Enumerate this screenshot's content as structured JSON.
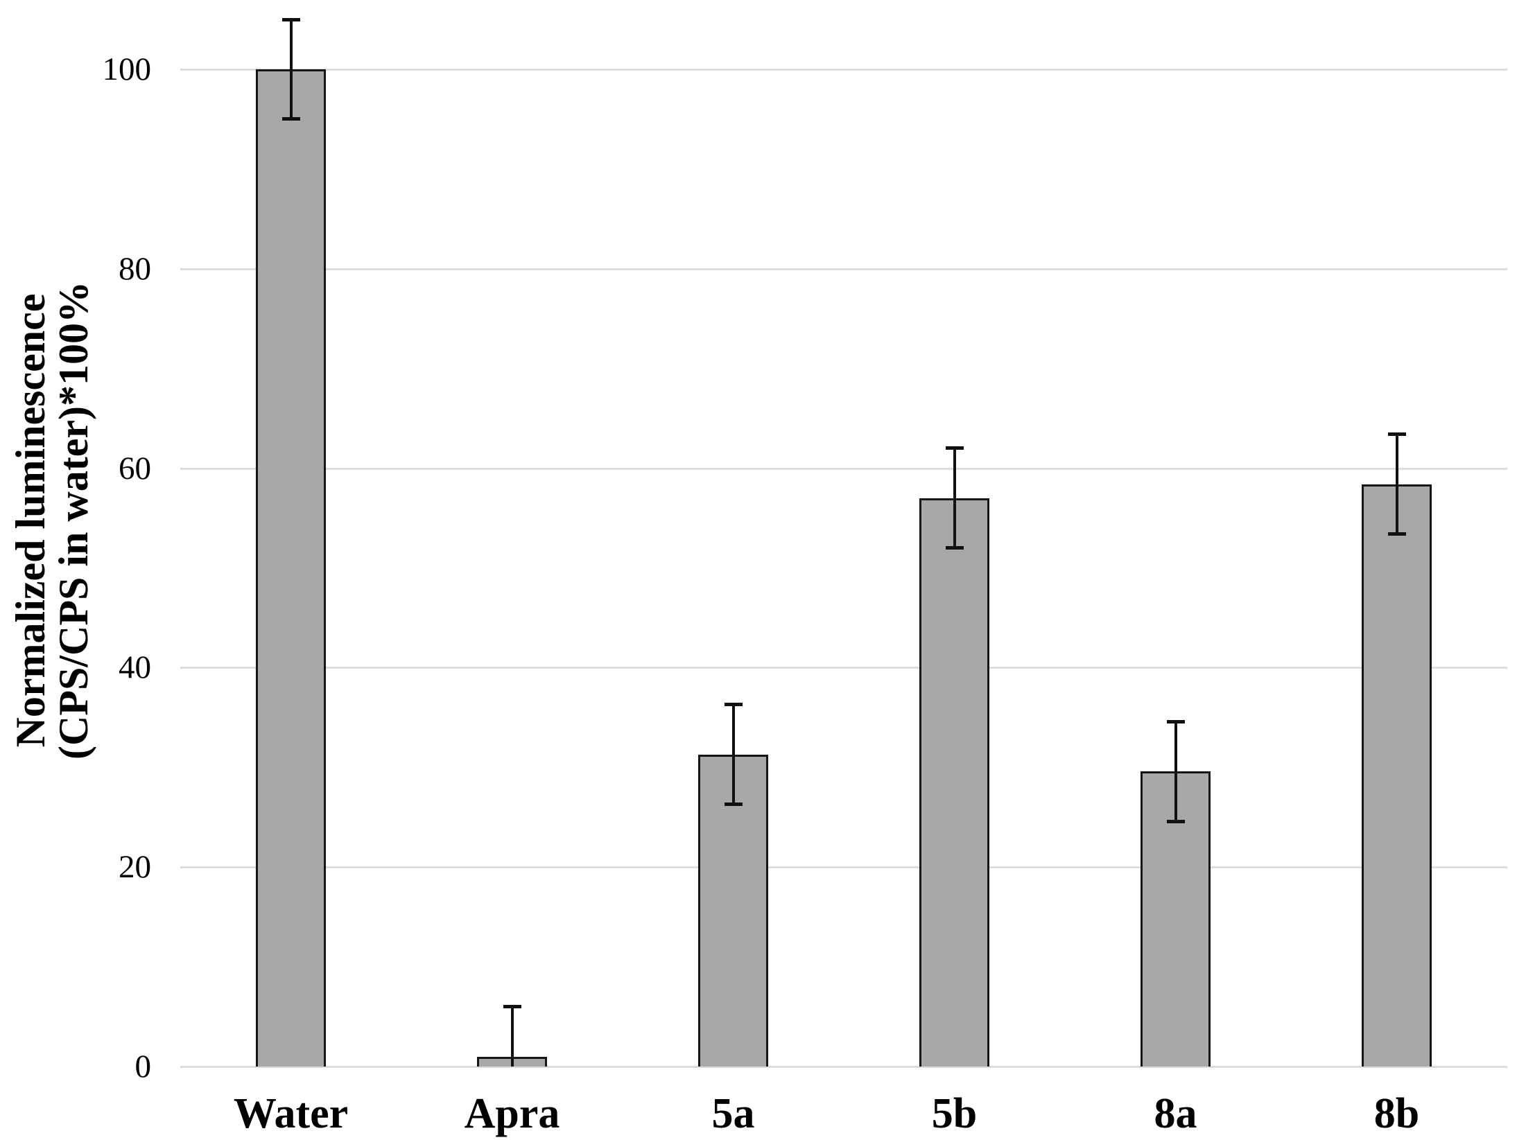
{
  "chart_data": {
    "type": "bar",
    "title": "",
    "categories": [
      "Water",
      "Apra",
      "5a",
      "5b",
      "8a",
      "8b"
    ],
    "values": [
      100,
      1,
      31.3,
      57,
      29.6,
      58.4
    ],
    "errors": [
      5,
      5,
      5,
      5,
      5,
      5
    ],
    "ylabel_line1": "Normalized luminescence",
    "ylabel_line2": "(CPS/CPS in water)*100%",
    "xlabel": "",
    "yticks": [
      0,
      20,
      40,
      60,
      80,
      100
    ],
    "ylim": [
      0,
      107
    ],
    "grid": "horizontal-only",
    "legend": "none",
    "colors": {
      "bar_fill": "#a8a8a8",
      "bar_border": "#161616",
      "error_bar": "#111111",
      "gridline": "#dcdcdc",
      "text": "#000000",
      "background": "#ffffff"
    }
  }
}
